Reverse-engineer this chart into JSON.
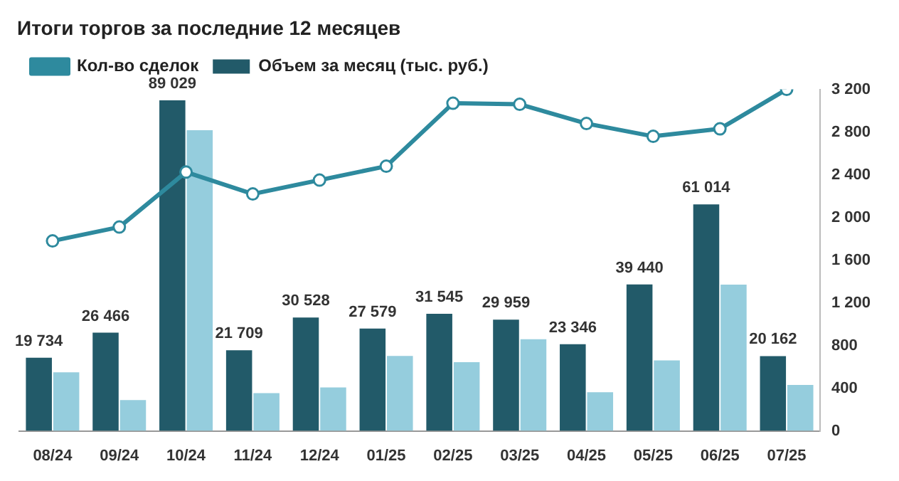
{
  "chart_data": {
    "type": "bar",
    "title": "Итоги торгов за последние 12 месяцев",
    "categories": [
      "08/24",
      "09/24",
      "10/24",
      "11/24",
      "12/24",
      "01/25",
      "02/25",
      "03/25",
      "04/25",
      "05/25",
      "06/25",
      "07/25"
    ],
    "series": [
      {
        "name": "Объем за месяц (тыс. руб.)",
        "color": "#225a69",
        "values": [
          19734,
          26466,
          89029,
          21709,
          30528,
          27579,
          31545,
          29959,
          23346,
          39440,
          61014,
          20162
        ],
        "value_labels": [
          "19 734",
          "26 466",
          "89 029",
          "21 709",
          "30 528",
          "27 579",
          "31 545",
          "29 959",
          "23 346",
          "39 440",
          "61 014",
          "20 162"
        ]
      },
      {
        "color": "#95cddd",
        "values": [
          15800,
          8300,
          81000,
          10200,
          11700,
          20200,
          18500,
          24700,
          10400,
          19000,
          39400,
          12400
        ]
      },
      {
        "name": "Кол-во сделок",
        "type": "line",
        "axis": "y2",
        "color": "#2e8a9e",
        "marker": "circle",
        "values": [
          1780,
          1910,
          2425,
          2220,
          2350,
          2480,
          3070,
          3060,
          2880,
          2760,
          2830,
          3200
        ]
      }
    ],
    "ylim": [
      0,
      92000
    ],
    "y2lim": [
      0,
      3200
    ],
    "y2ticks": [
      0,
      400,
      800,
      {
        "value": 1200,
        "label": "1 200"
      },
      {
        "value": 1600,
        "label": "1 600"
      },
      {
        "value": 2000,
        "label": "2 000"
      },
      {
        "value": 2400,
        "label": "2 400"
      },
      {
        "value": 2800,
        "label": "2 800"
      },
      {
        "value": 3200,
        "label": "3 200"
      }
    ],
    "legend": "top left",
    "grid": false
  }
}
